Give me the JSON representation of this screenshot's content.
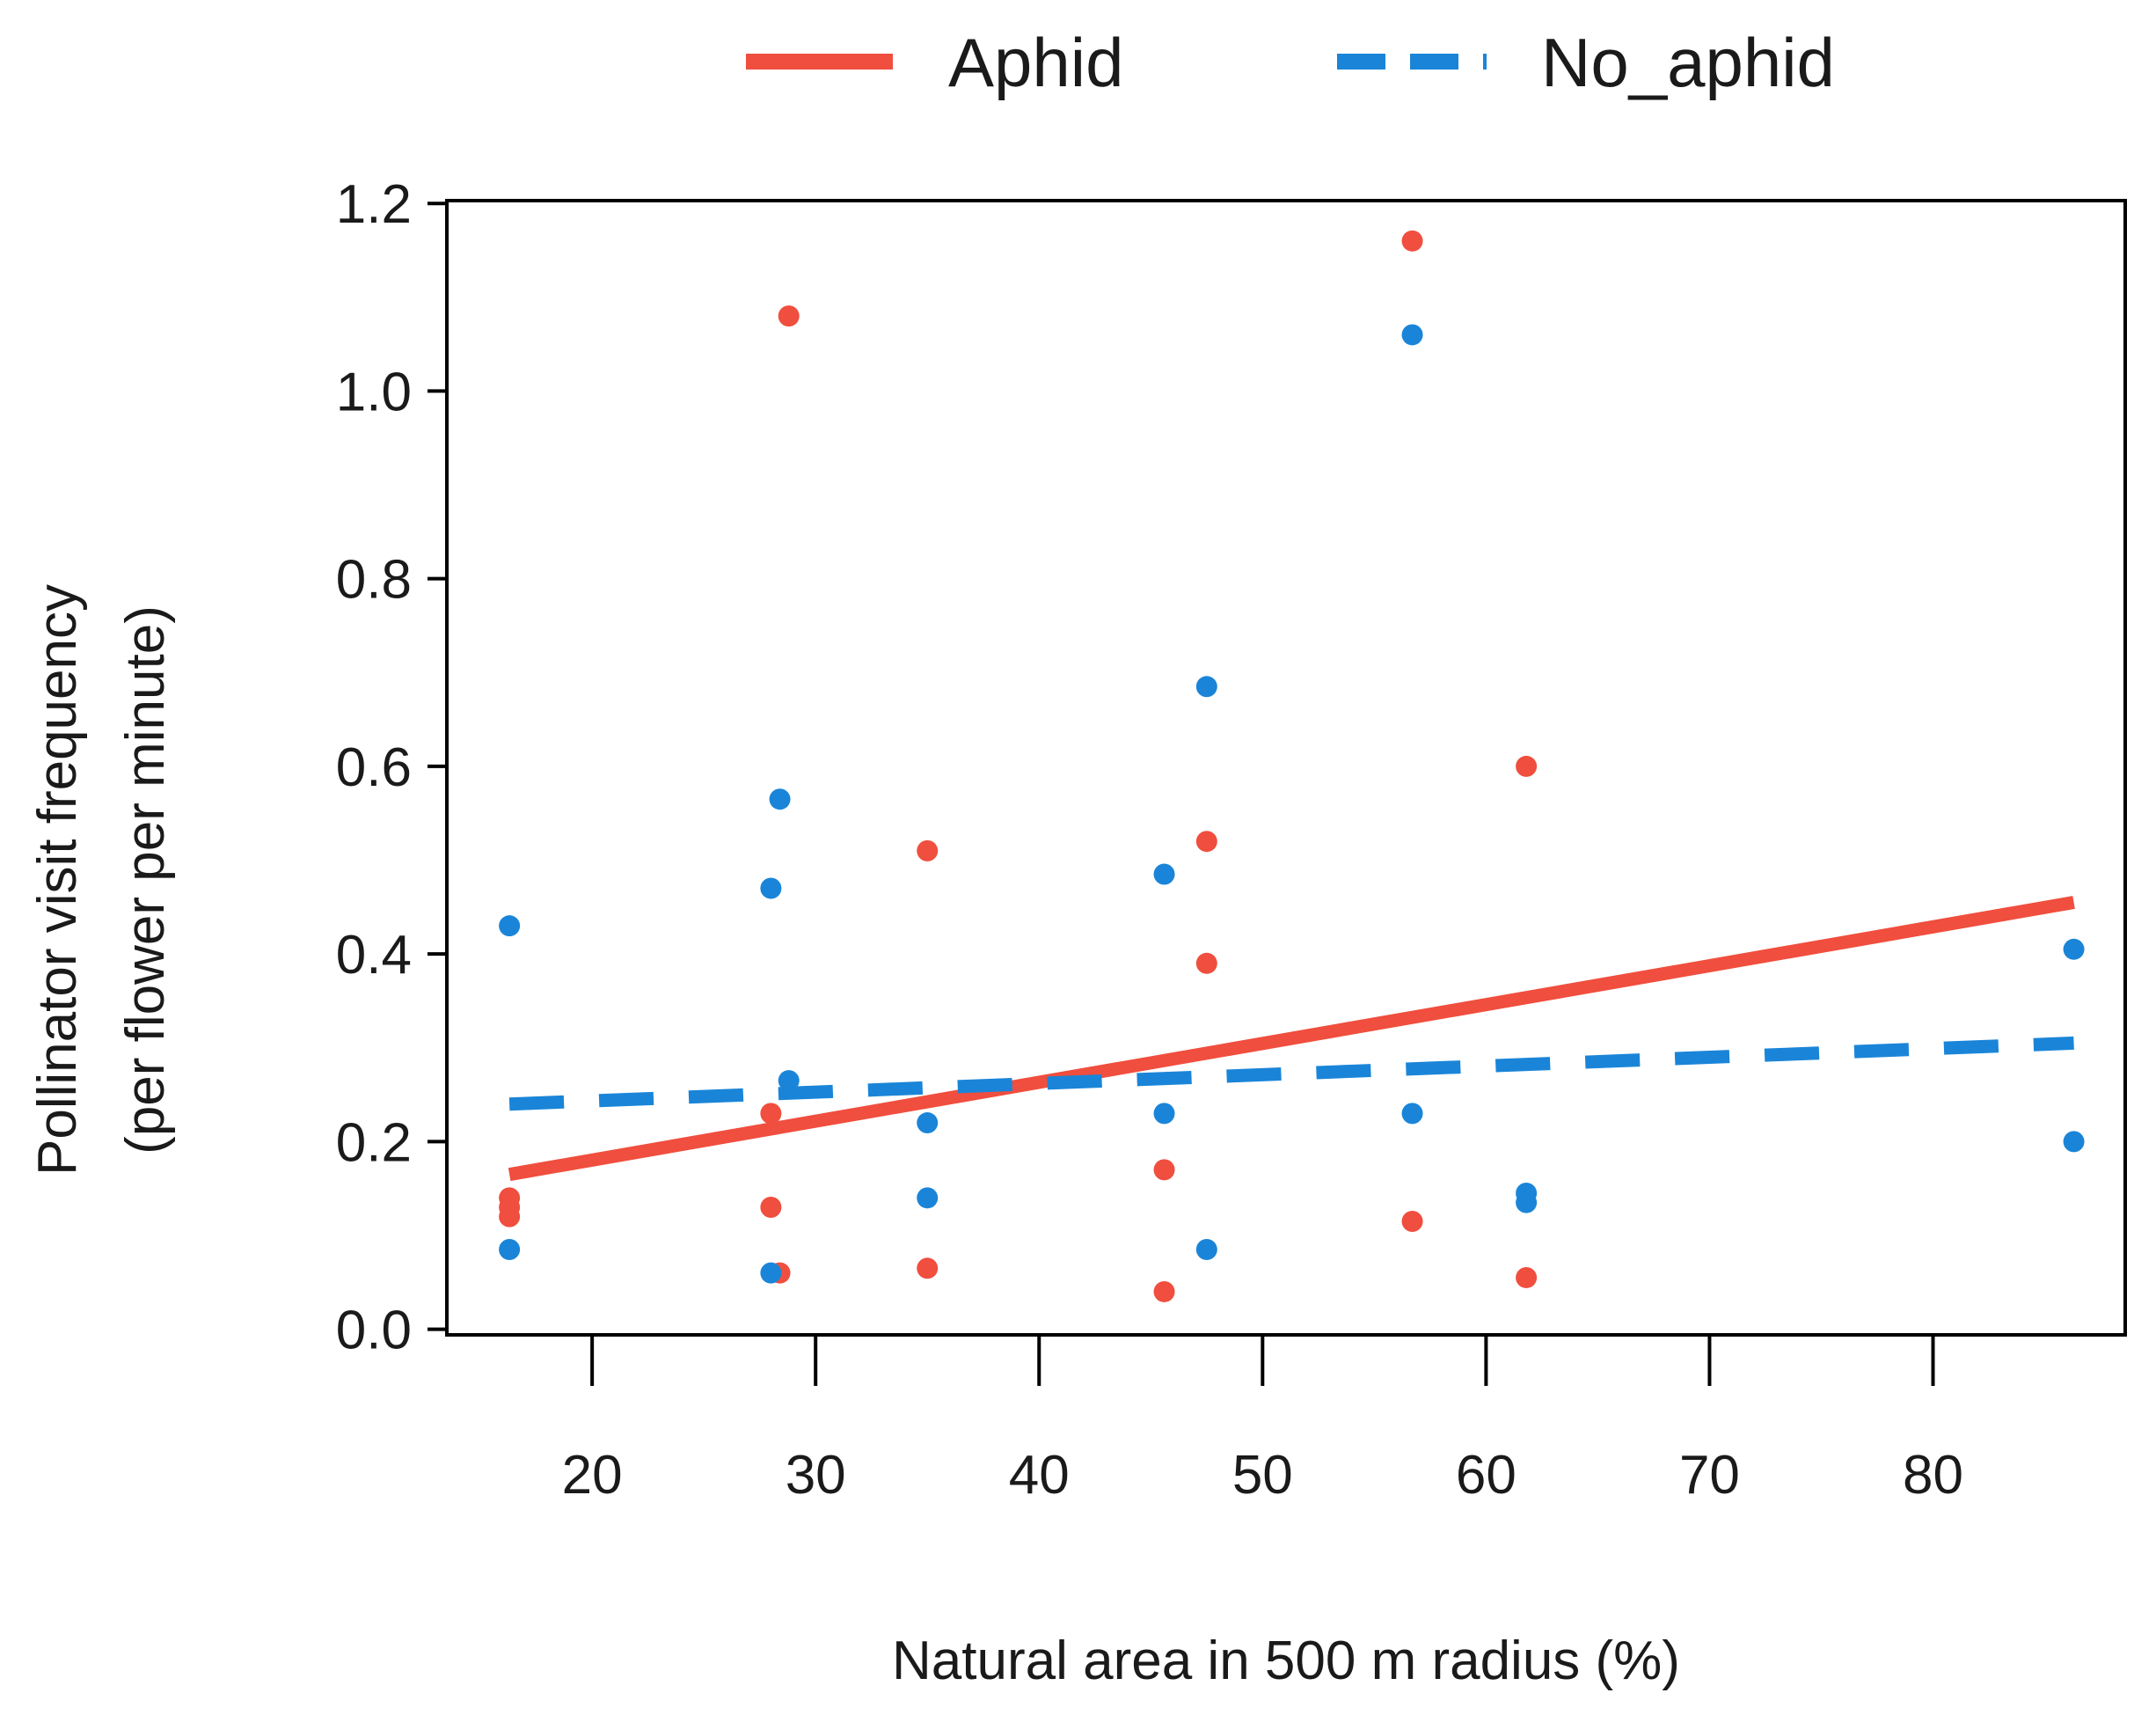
{
  "chart_data": {
    "type": "scatter",
    "title": "",
    "xlabel": "Natural area in 500 m radius (%)",
    "ylabel_lines": [
      "Pollinator visit frequency",
      "(per flower per minute)"
    ],
    "xlim": [
      13.5,
      88.6
    ],
    "ylim": [
      -0.006,
      1.203
    ],
    "xticks": [
      20,
      30,
      40,
      50,
      60,
      70,
      80
    ],
    "xtick_labels": [
      "20",
      "30",
      "40",
      "50",
      "60",
      "70",
      "80"
    ],
    "yticks": [
      0.0,
      0.2,
      0.4,
      0.6,
      0.8,
      1.0,
      1.2
    ],
    "ytick_labels": [
      "0.0",
      "0.2",
      "0.4",
      "0.6",
      "0.8",
      "1.0",
      "1.2"
    ],
    "grid": false,
    "legend_position": "top-center",
    "series": [
      {
        "name": "Aphid",
        "color": "#f04e3e",
        "line_style": "solid",
        "points": [
          {
            "x": 16.3,
            "y": 0.14
          },
          {
            "x": 16.3,
            "y": 0.13
          },
          {
            "x": 16.3,
            "y": 0.12
          },
          {
            "x": 28.0,
            "y": 0.23
          },
          {
            "x": 28.0,
            "y": 0.13
          },
          {
            "x": 28.4,
            "y": 0.06
          },
          {
            "x": 28.8,
            "y": 1.08
          },
          {
            "x": 35.0,
            "y": 0.51
          },
          {
            "x": 35.0,
            "y": 0.065
          },
          {
            "x": 45.6,
            "y": 0.17
          },
          {
            "x": 45.6,
            "y": 0.04
          },
          {
            "x": 47.5,
            "y": 0.52
          },
          {
            "x": 47.5,
            "y": 0.39
          },
          {
            "x": 56.7,
            "y": 1.16
          },
          {
            "x": 56.7,
            "y": 0.115
          },
          {
            "x": 61.8,
            "y": 0.6
          },
          {
            "x": 61.8,
            "y": 0.055
          }
        ],
        "fit": {
          "x": [
            16.3,
            86.3
          ],
          "y": [
            0.165,
            0.455
          ]
        }
      },
      {
        "name": "No_aphid",
        "color": "#1a85d8",
        "line_style": "dashed",
        "points": [
          {
            "x": 16.3,
            "y": 0.43
          },
          {
            "x": 16.3,
            "y": 0.085
          },
          {
            "x": 28.0,
            "y": 0.47
          },
          {
            "x": 28.0,
            "y": 0.06
          },
          {
            "x": 28.4,
            "y": 0.565
          },
          {
            "x": 28.8,
            "y": 0.265
          },
          {
            "x": 35.0,
            "y": 0.14
          },
          {
            "x": 35.0,
            "y": 0.22
          },
          {
            "x": 45.6,
            "y": 0.485
          },
          {
            "x": 45.6,
            "y": 0.23
          },
          {
            "x": 47.5,
            "y": 0.685
          },
          {
            "x": 47.5,
            "y": 0.085
          },
          {
            "x": 56.7,
            "y": 1.06
          },
          {
            "x": 56.7,
            "y": 0.23
          },
          {
            "x": 61.8,
            "y": 0.145
          },
          {
            "x": 61.8,
            "y": 0.135
          },
          {
            "x": 86.3,
            "y": 0.405
          },
          {
            "x": 86.3,
            "y": 0.2
          }
        ],
        "fit": {
          "x": [
            16.3,
            86.3
          ],
          "y": [
            0.24,
            0.305
          ]
        }
      }
    ]
  }
}
